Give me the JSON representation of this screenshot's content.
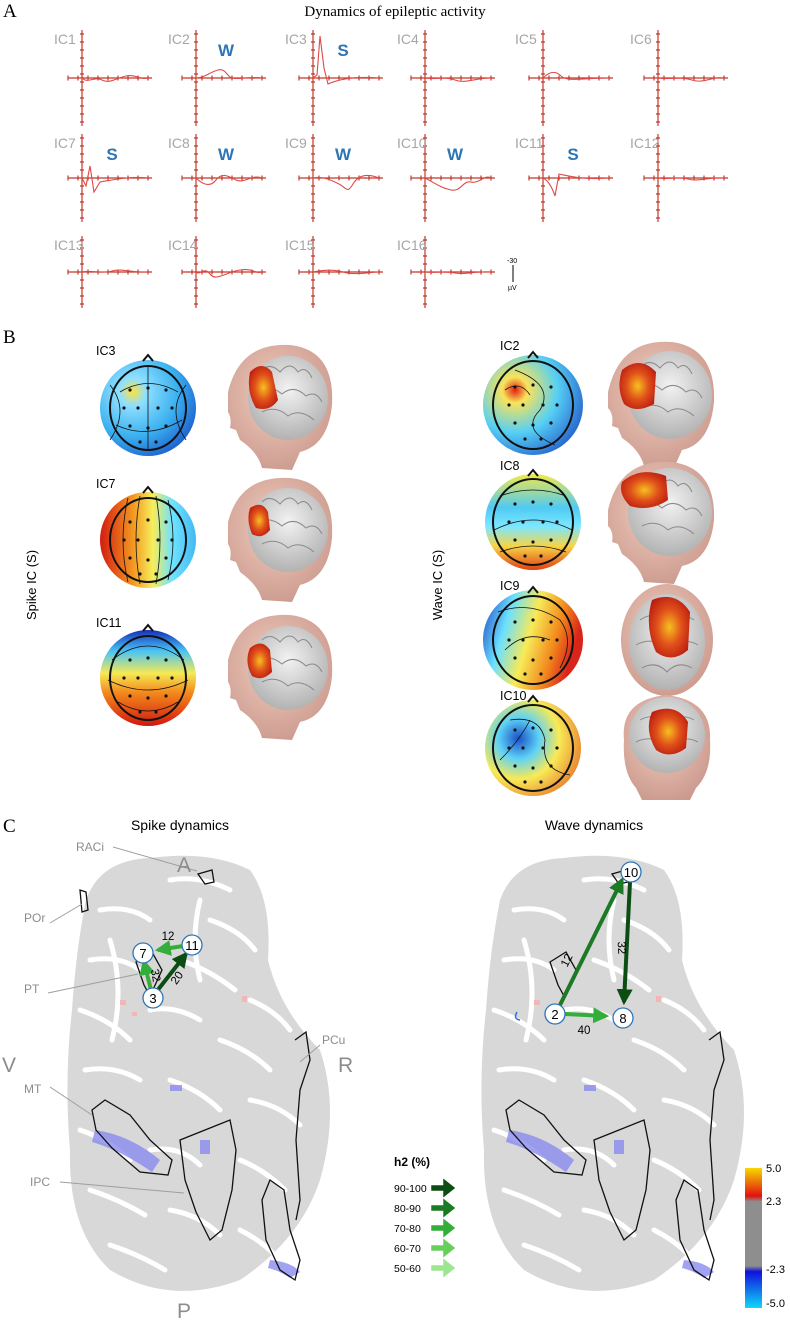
{
  "panel_a": {
    "label": "A",
    "title": "Dynamics of epileptic activity",
    "components": [
      {
        "id": "IC1",
        "tag": ""
      },
      {
        "id": "IC2",
        "tag": "W"
      },
      {
        "id": "IC3",
        "tag": "S"
      },
      {
        "id": "IC4",
        "tag": ""
      },
      {
        "id": "IC5",
        "tag": ""
      },
      {
        "id": "IC6",
        "tag": ""
      },
      {
        "id": "IC7",
        "tag": "S"
      },
      {
        "id": "IC8",
        "tag": "W"
      },
      {
        "id": "IC9",
        "tag": "W"
      },
      {
        "id": "IC10",
        "tag": "W"
      },
      {
        "id": "IC11",
        "tag": "S"
      },
      {
        "id": "IC12",
        "tag": ""
      },
      {
        "id": "IC13",
        "tag": ""
      },
      {
        "id": "IC14",
        "tag": ""
      },
      {
        "id": "IC15",
        "tag": ""
      },
      {
        "id": "IC16",
        "tag": ""
      }
    ],
    "scale_value": "-30",
    "scale_unit": "µV"
  },
  "panel_b": {
    "label": "B",
    "spike_side_label": "Spike IC (S)",
    "wave_side_label": "Wave IC (S)",
    "spike_ics": [
      "IC3",
      "IC7",
      "IC11"
    ],
    "wave_ics": [
      "IC2",
      "IC8",
      "IC9",
      "IC10"
    ]
  },
  "panel_c": {
    "label": "C",
    "spike_title": "Spike dynamics",
    "wave_title": "Wave dynamics",
    "orientation": {
      "anterior": "A",
      "posterior": "P",
      "left": "V",
      "right": "R"
    },
    "regions": [
      "RACi",
      "POr",
      "PT",
      "PCu",
      "MT",
      "IPC"
    ],
    "spike_nodes": [
      "7",
      "11",
      "3"
    ],
    "spike_edges": [
      {
        "from": "11",
        "to": "7",
        "h2": "12"
      },
      {
        "from": "3",
        "to": "7",
        "h2": "32"
      },
      {
        "from": "3",
        "to": "11",
        "h2": "20"
      }
    ],
    "wave_nodes": [
      "10",
      "2",
      "8"
    ],
    "wave_edges": [
      {
        "from": "2",
        "to": "10",
        "h2": "12"
      },
      {
        "from": "10",
        "to": "8",
        "h2": "32"
      },
      {
        "from": "2",
        "to": "8",
        "h2": "40"
      }
    ],
    "legend_title": "h2 (%)",
    "legend": [
      {
        "label": "90-100",
        "color": "#0b4d12"
      },
      {
        "label": "80-90",
        "color": "#1b7a23"
      },
      {
        "label": "70-80",
        "color": "#35ad3b"
      },
      {
        "label": "60-70",
        "color": "#66cf5c"
      },
      {
        "label": "50-60",
        "color": "#9be68e"
      }
    ],
    "colorbar": [
      "5.0",
      "2.3",
      "-2.3",
      "-5.0"
    ]
  }
}
